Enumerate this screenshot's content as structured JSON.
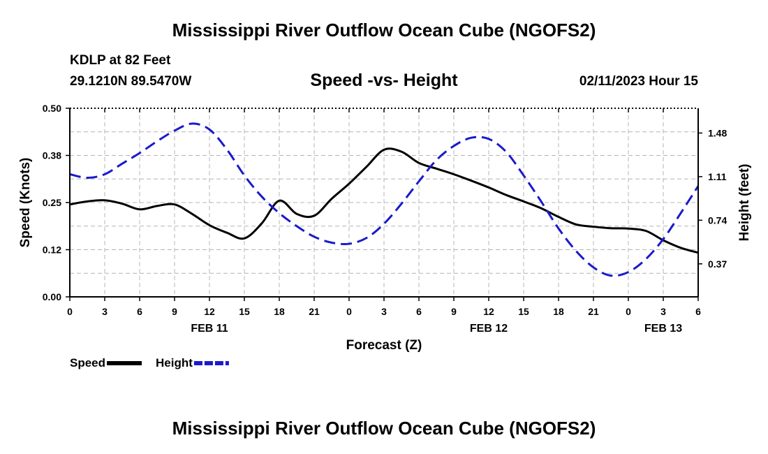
{
  "header": {
    "title": "Mississippi River Outflow Ocean Cube (NGOFS2)",
    "station": "KDLP at 82 Feet",
    "coordinates": "29.1210N  89.5470W",
    "subtitle": "Speed -vs- Height",
    "datetime": "02/11/2023 Hour 15"
  },
  "footer": {
    "title": "Mississippi River Outflow Ocean Cube (NGOFS2)"
  },
  "chart_data": {
    "type": "line",
    "title": "Speed -vs- Height",
    "xlabel": "Forecast (Z)",
    "ylabel": "Speed (Knots)",
    "y2label": "Height (feet)",
    "xlim": [
      0,
      54
    ],
    "ylim": [
      0,
      0.5
    ],
    "y2lim": [
      0.09,
      1.69
    ],
    "x_ticks": [
      0,
      3,
      6,
      9,
      12,
      15,
      18,
      21,
      24,
      27,
      30,
      33,
      36,
      39,
      42,
      45,
      48,
      51,
      54
    ],
    "x_tick_labels": [
      "0",
      "3",
      "6",
      "9",
      "12",
      "15",
      "18",
      "21",
      "0",
      "3",
      "6",
      "9",
      "12",
      "15",
      "18",
      "21",
      "0",
      "3",
      "6"
    ],
    "date_labels": [
      {
        "x": 12,
        "label": "FEB 11"
      },
      {
        "x": 36,
        "label": "FEB 12"
      },
      {
        "x": 51,
        "label": "FEB 13"
      }
    ],
    "y_ticks": [
      0.0,
      0.125,
      0.25,
      0.375,
      0.5
    ],
    "y_tick_labels": [
      "0.00",
      "0.12",
      "0.25",
      "0.38",
      "0.50"
    ],
    "y2_ticks": [
      0.37,
      0.74,
      1.11,
      1.48
    ],
    "y2_tick_labels": [
      "0.37",
      "0.74",
      "1.11",
      "1.48"
    ],
    "grid": true,
    "legend": [
      {
        "label": "Speed",
        "color": "#000000",
        "dash": "solid"
      },
      {
        "label": "Height",
        "color": "#1a1acc",
        "dash": "dashed"
      }
    ],
    "series": [
      {
        "name": "Speed",
        "axis": "left",
        "color": "#000000",
        "x": [
          0,
          1.5,
          3,
          4.5,
          6,
          7.5,
          9,
          10.5,
          12,
          13.5,
          15,
          16.5,
          18,
          19.5,
          21,
          22.5,
          24,
          25.5,
          27,
          28.5,
          30,
          31.5,
          33,
          34.5,
          36,
          37.5,
          39,
          40.5,
          42,
          43.5,
          45,
          46.5,
          48,
          49.5,
          51,
          52.5,
          54
        ],
        "values": [
          0.245,
          0.253,
          0.256,
          0.247,
          0.232,
          0.241,
          0.245,
          0.22,
          0.19,
          0.17,
          0.155,
          0.195,
          0.255,
          0.22,
          0.215,
          0.26,
          0.3,
          0.345,
          0.39,
          0.385,
          0.355,
          0.34,
          0.325,
          0.308,
          0.29,
          0.27,
          0.253,
          0.235,
          0.212,
          0.192,
          0.186,
          0.182,
          0.181,
          0.175,
          0.15,
          0.13,
          0.117
        ]
      },
      {
        "name": "Height",
        "axis": "right",
        "color": "#1a1acc",
        "x": [
          0,
          1.5,
          3,
          4.5,
          6,
          7.5,
          9,
          10.5,
          12,
          13.5,
          15,
          16.5,
          18,
          19.5,
          21,
          22.5,
          24,
          25.5,
          27,
          28.5,
          30,
          31.5,
          33,
          34.5,
          36,
          37.5,
          39,
          40.5,
          42,
          43.5,
          45,
          46.5,
          48,
          49.5,
          51,
          52.5,
          54
        ],
        "values": [
          1.13,
          1.1,
          1.13,
          1.22,
          1.31,
          1.41,
          1.5,
          1.56,
          1.51,
          1.34,
          1.12,
          0.94,
          0.8,
          0.69,
          0.6,
          0.55,
          0.54,
          0.59,
          0.71,
          0.88,
          1.07,
          1.25,
          1.37,
          1.44,
          1.43,
          1.32,
          1.12,
          0.9,
          0.67,
          0.48,
          0.34,
          0.27,
          0.3,
          0.41,
          0.58,
          0.8,
          1.03
        ]
      }
    ]
  }
}
